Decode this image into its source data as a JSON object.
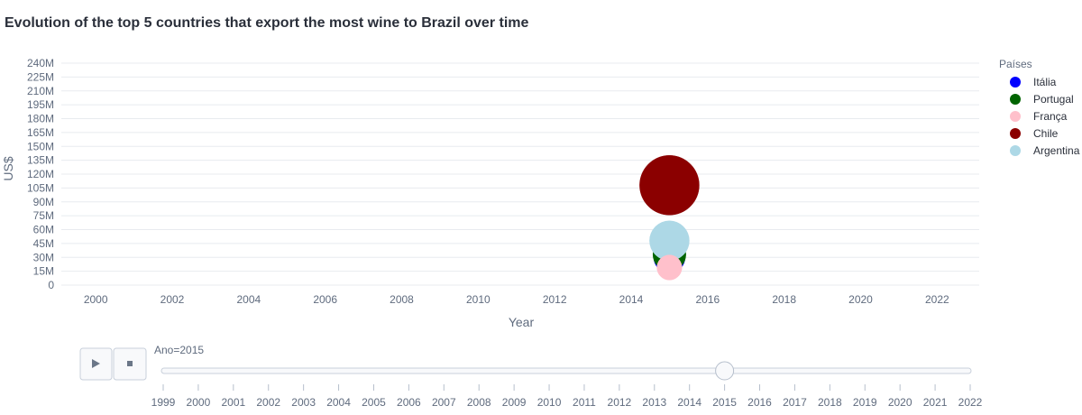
{
  "chart_data": {
    "type": "scatter",
    "title": "Evolution of the top 5 countries that export the most wine to Brazil over time",
    "xlabel": "Year",
    "ylabel": "US$",
    "xlim": [
      1999.1,
      2023.1
    ],
    "ylim": [
      0,
      240000000
    ],
    "x_ticks": [
      2000,
      2002,
      2004,
      2006,
      2008,
      2010,
      2012,
      2014,
      2016,
      2018,
      2020,
      2022
    ],
    "y_ticks": [
      {
        "value": 0,
        "label": "0"
      },
      {
        "value": 15000000,
        "label": "15M"
      },
      {
        "value": 30000000,
        "label": "30M"
      },
      {
        "value": 45000000,
        "label": "45M"
      },
      {
        "value": 60000000,
        "label": "60M"
      },
      {
        "value": 75000000,
        "label": "75M"
      },
      {
        "value": 90000000,
        "label": "90M"
      },
      {
        "value": 105000000,
        "label": "105M"
      },
      {
        "value": 120000000,
        "label": "120M"
      },
      {
        "value": 135000000,
        "label": "135M"
      },
      {
        "value": 150000000,
        "label": "150M"
      },
      {
        "value": 165000000,
        "label": "165M"
      },
      {
        "value": 180000000,
        "label": "180M"
      },
      {
        "value": 195000000,
        "label": "195M"
      },
      {
        "value": 210000000,
        "label": "210M"
      },
      {
        "value": 225000000,
        "label": "225M"
      },
      {
        "value": 240000000,
        "label": "240M"
      }
    ],
    "grid": true,
    "legend_title": "Países",
    "legend_position": "right",
    "series": [
      {
        "name": "Itália",
        "color": "#0000ff",
        "points": [
          {
            "x": 2015,
            "y": 30000000,
            "size": 30000000
          }
        ]
      },
      {
        "name": "Portugal",
        "color": "#006400",
        "points": [
          {
            "x": 2015,
            "y": 33000000,
            "size": 33000000
          }
        ]
      },
      {
        "name": "França",
        "color": "#ffc0cb",
        "points": [
          {
            "x": 2015,
            "y": 19000000,
            "size": 19000000
          }
        ]
      },
      {
        "name": "Chile",
        "color": "#8b0000",
        "points": [
          {
            "x": 2015,
            "y": 108000000,
            "size": 108000000
          }
        ]
      },
      {
        "name": "Argentina",
        "color": "#add8e6",
        "points": [
          {
            "x": 2015,
            "y": 48000000,
            "size": 48000000
          }
        ]
      }
    ],
    "draw_order": [
      "Itália",
      "Portugal",
      "Chile",
      "Argentina",
      "França"
    ],
    "max_size": 108000000
  },
  "animation": {
    "current_label": "Ano=2015",
    "current_value": 2015,
    "steps": [
      "1999",
      "2000",
      "2001",
      "2002",
      "2003",
      "2004",
      "2005",
      "2006",
      "2007",
      "2008",
      "2009",
      "2010",
      "2011",
      "2012",
      "2013",
      "2014",
      "2015",
      "2016",
      "2017",
      "2018",
      "2019",
      "2020",
      "2021",
      "2022"
    ],
    "play_icon": "play-icon",
    "stop_icon": "stop-icon"
  }
}
